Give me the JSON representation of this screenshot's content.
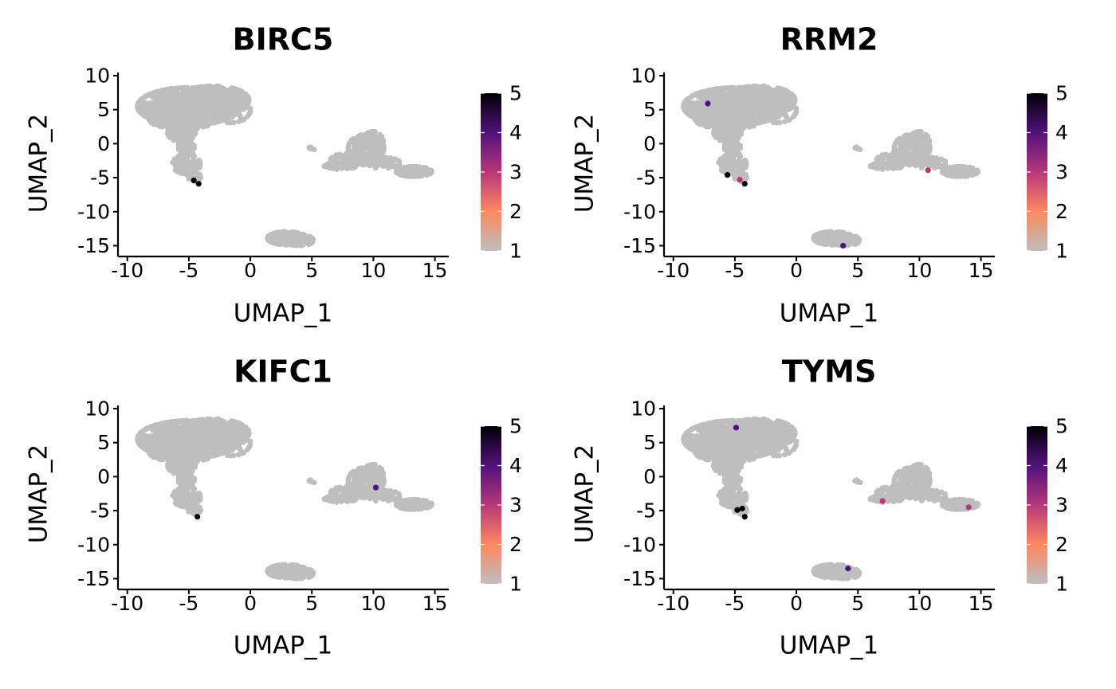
{
  "colorbar": {
    "stops": [
      "#bebebe",
      "#fc8961",
      "#b73779",
      "#51127c",
      "#000004"
    ],
    "ticks": [
      1,
      2,
      3,
      4,
      5
    ],
    "range": [
      1,
      5
    ]
  },
  "cluster_color": "#bebebe",
  "chart_data": [
    {
      "type": "scatter",
      "title": "BIRC5",
      "xlabel": "UMAP_1",
      "ylabel": "UMAP_2",
      "xlim": [
        -10.5,
        16
      ],
      "ylim": [
        -16,
        10
      ],
      "xticks": [
        -10,
        -5,
        0,
        5,
        10,
        15
      ],
      "yticks": [
        10,
        5,
        0,
        -5,
        -10,
        -15
      ],
      "grid": false,
      "legend": "right",
      "expressing_cells": [
        {
          "x": -4.6,
          "y": -5.4,
          "value": 5
        },
        {
          "x": -4.2,
          "y": -5.9,
          "value": 5
        }
      ]
    },
    {
      "type": "scatter",
      "title": "RRM2",
      "xlabel": "UMAP_1",
      "ylabel": "UMAP_2",
      "xlim": [
        -10.5,
        16
      ],
      "ylim": [
        -16,
        10
      ],
      "xticks": [
        -10,
        -5,
        0,
        5,
        10,
        15
      ],
      "yticks": [
        10,
        5,
        0,
        -5,
        -10,
        -15
      ],
      "grid": false,
      "legend": "right",
      "expressing_cells": [
        {
          "x": -7.2,
          "y": 5.9,
          "value": 4
        },
        {
          "x": -5.6,
          "y": -4.6,
          "value": 5
        },
        {
          "x": -4.6,
          "y": -5.3,
          "value": 3
        },
        {
          "x": -4.2,
          "y": -5.9,
          "value": 5
        },
        {
          "x": 10.7,
          "y": -3.9,
          "value": 3
        },
        {
          "x": 3.8,
          "y": -15.0,
          "value": 4
        }
      ]
    },
    {
      "type": "scatter",
      "title": "KIFC1",
      "xlabel": "UMAP_1",
      "ylabel": "UMAP_2",
      "xlim": [
        -10.5,
        16
      ],
      "ylim": [
        -16,
        10
      ],
      "xticks": [
        -10,
        -5,
        0,
        5,
        10,
        15
      ],
      "yticks": [
        10,
        5,
        0,
        -5,
        -10,
        -15
      ],
      "grid": false,
      "legend": "right",
      "expressing_cells": [
        {
          "x": 10.2,
          "y": -1.6,
          "value": 4
        },
        {
          "x": -4.3,
          "y": -5.9,
          "value": 5
        }
      ]
    },
    {
      "type": "scatter",
      "title": "TYMS",
      "xlabel": "UMAP_1",
      "ylabel": "UMAP_2",
      "xlim": [
        -10.5,
        16
      ],
      "ylim": [
        -16,
        10
      ],
      "xticks": [
        -10,
        -5,
        0,
        5,
        10,
        15
      ],
      "yticks": [
        10,
        5,
        0,
        -5,
        -10,
        -15
      ],
      "grid": false,
      "legend": "right",
      "expressing_cells": [
        {
          "x": -4.9,
          "y": 7.2,
          "value": 4
        },
        {
          "x": -4.8,
          "y": -4.9,
          "value": 5
        },
        {
          "x": -4.4,
          "y": -4.7,
          "value": 5
        },
        {
          "x": -4.2,
          "y": -5.9,
          "value": 5
        },
        {
          "x": 7.0,
          "y": -3.6,
          "value": 3
        },
        {
          "x": 14.0,
          "y": -4.5,
          "value": 3
        },
        {
          "x": 4.2,
          "y": -13.5,
          "value": 4
        }
      ]
    }
  ]
}
